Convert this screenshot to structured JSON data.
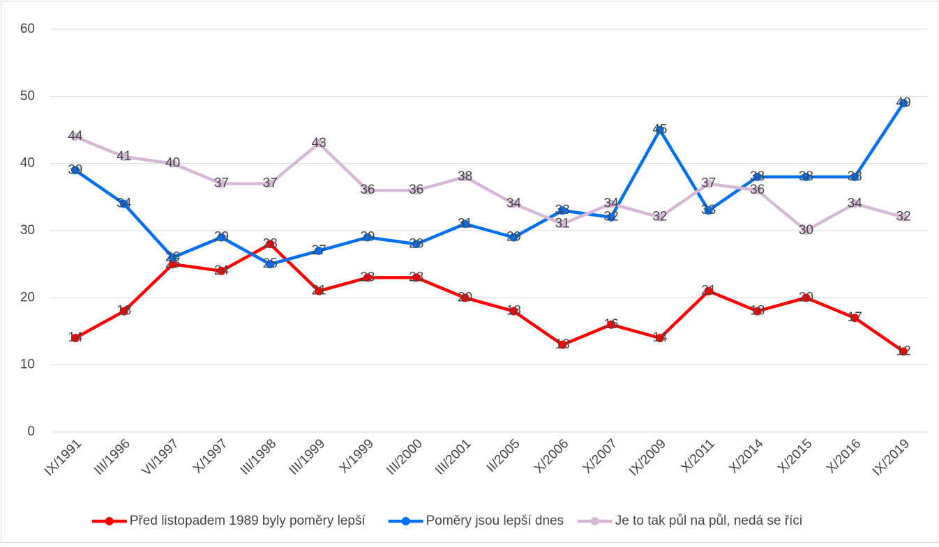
{
  "chart_data": {
    "type": "line",
    "categories": [
      "IX/1991",
      "III/1996",
      "VI/1997",
      "X/1997",
      "III/1998",
      "III/1999",
      "X/1999",
      "III/2000",
      "III/2001",
      "II/2005",
      "X/2006",
      "X/2007",
      "IX/2009",
      "X/2011",
      "X/2014",
      "X/2015",
      "X/2016",
      "IX/2019"
    ],
    "series": [
      {
        "name": "Před listopadem 1989 byly poměry lepší",
        "color": "#ff0000",
        "values": [
          14,
          18,
          25,
          24,
          28,
          21,
          23,
          23,
          20,
          18,
          13,
          16,
          14,
          21,
          18,
          20,
          17,
          12
        ]
      },
      {
        "name": "Poměry jsou lepší dnes",
        "color": "#0070f0",
        "values": [
          39,
          34,
          26,
          29,
          25,
          27,
          29,
          28,
          31,
          29,
          33,
          32,
          45,
          33,
          38,
          38,
          38,
          49
        ]
      },
      {
        "name": "Je to tak půl na půl, nedá se říci",
        "color": "#d5b8d5",
        "values": [
          44,
          41,
          40,
          37,
          37,
          43,
          36,
          36,
          38,
          34,
          31,
          34,
          32,
          37,
          36,
          30,
          34,
          32
        ]
      }
    ],
    "ylim": [
      0,
      60
    ],
    "yticks": [
      0,
      10,
      20,
      30,
      40,
      50,
      60
    ],
    "grid": true,
    "legend": "bottom"
  }
}
